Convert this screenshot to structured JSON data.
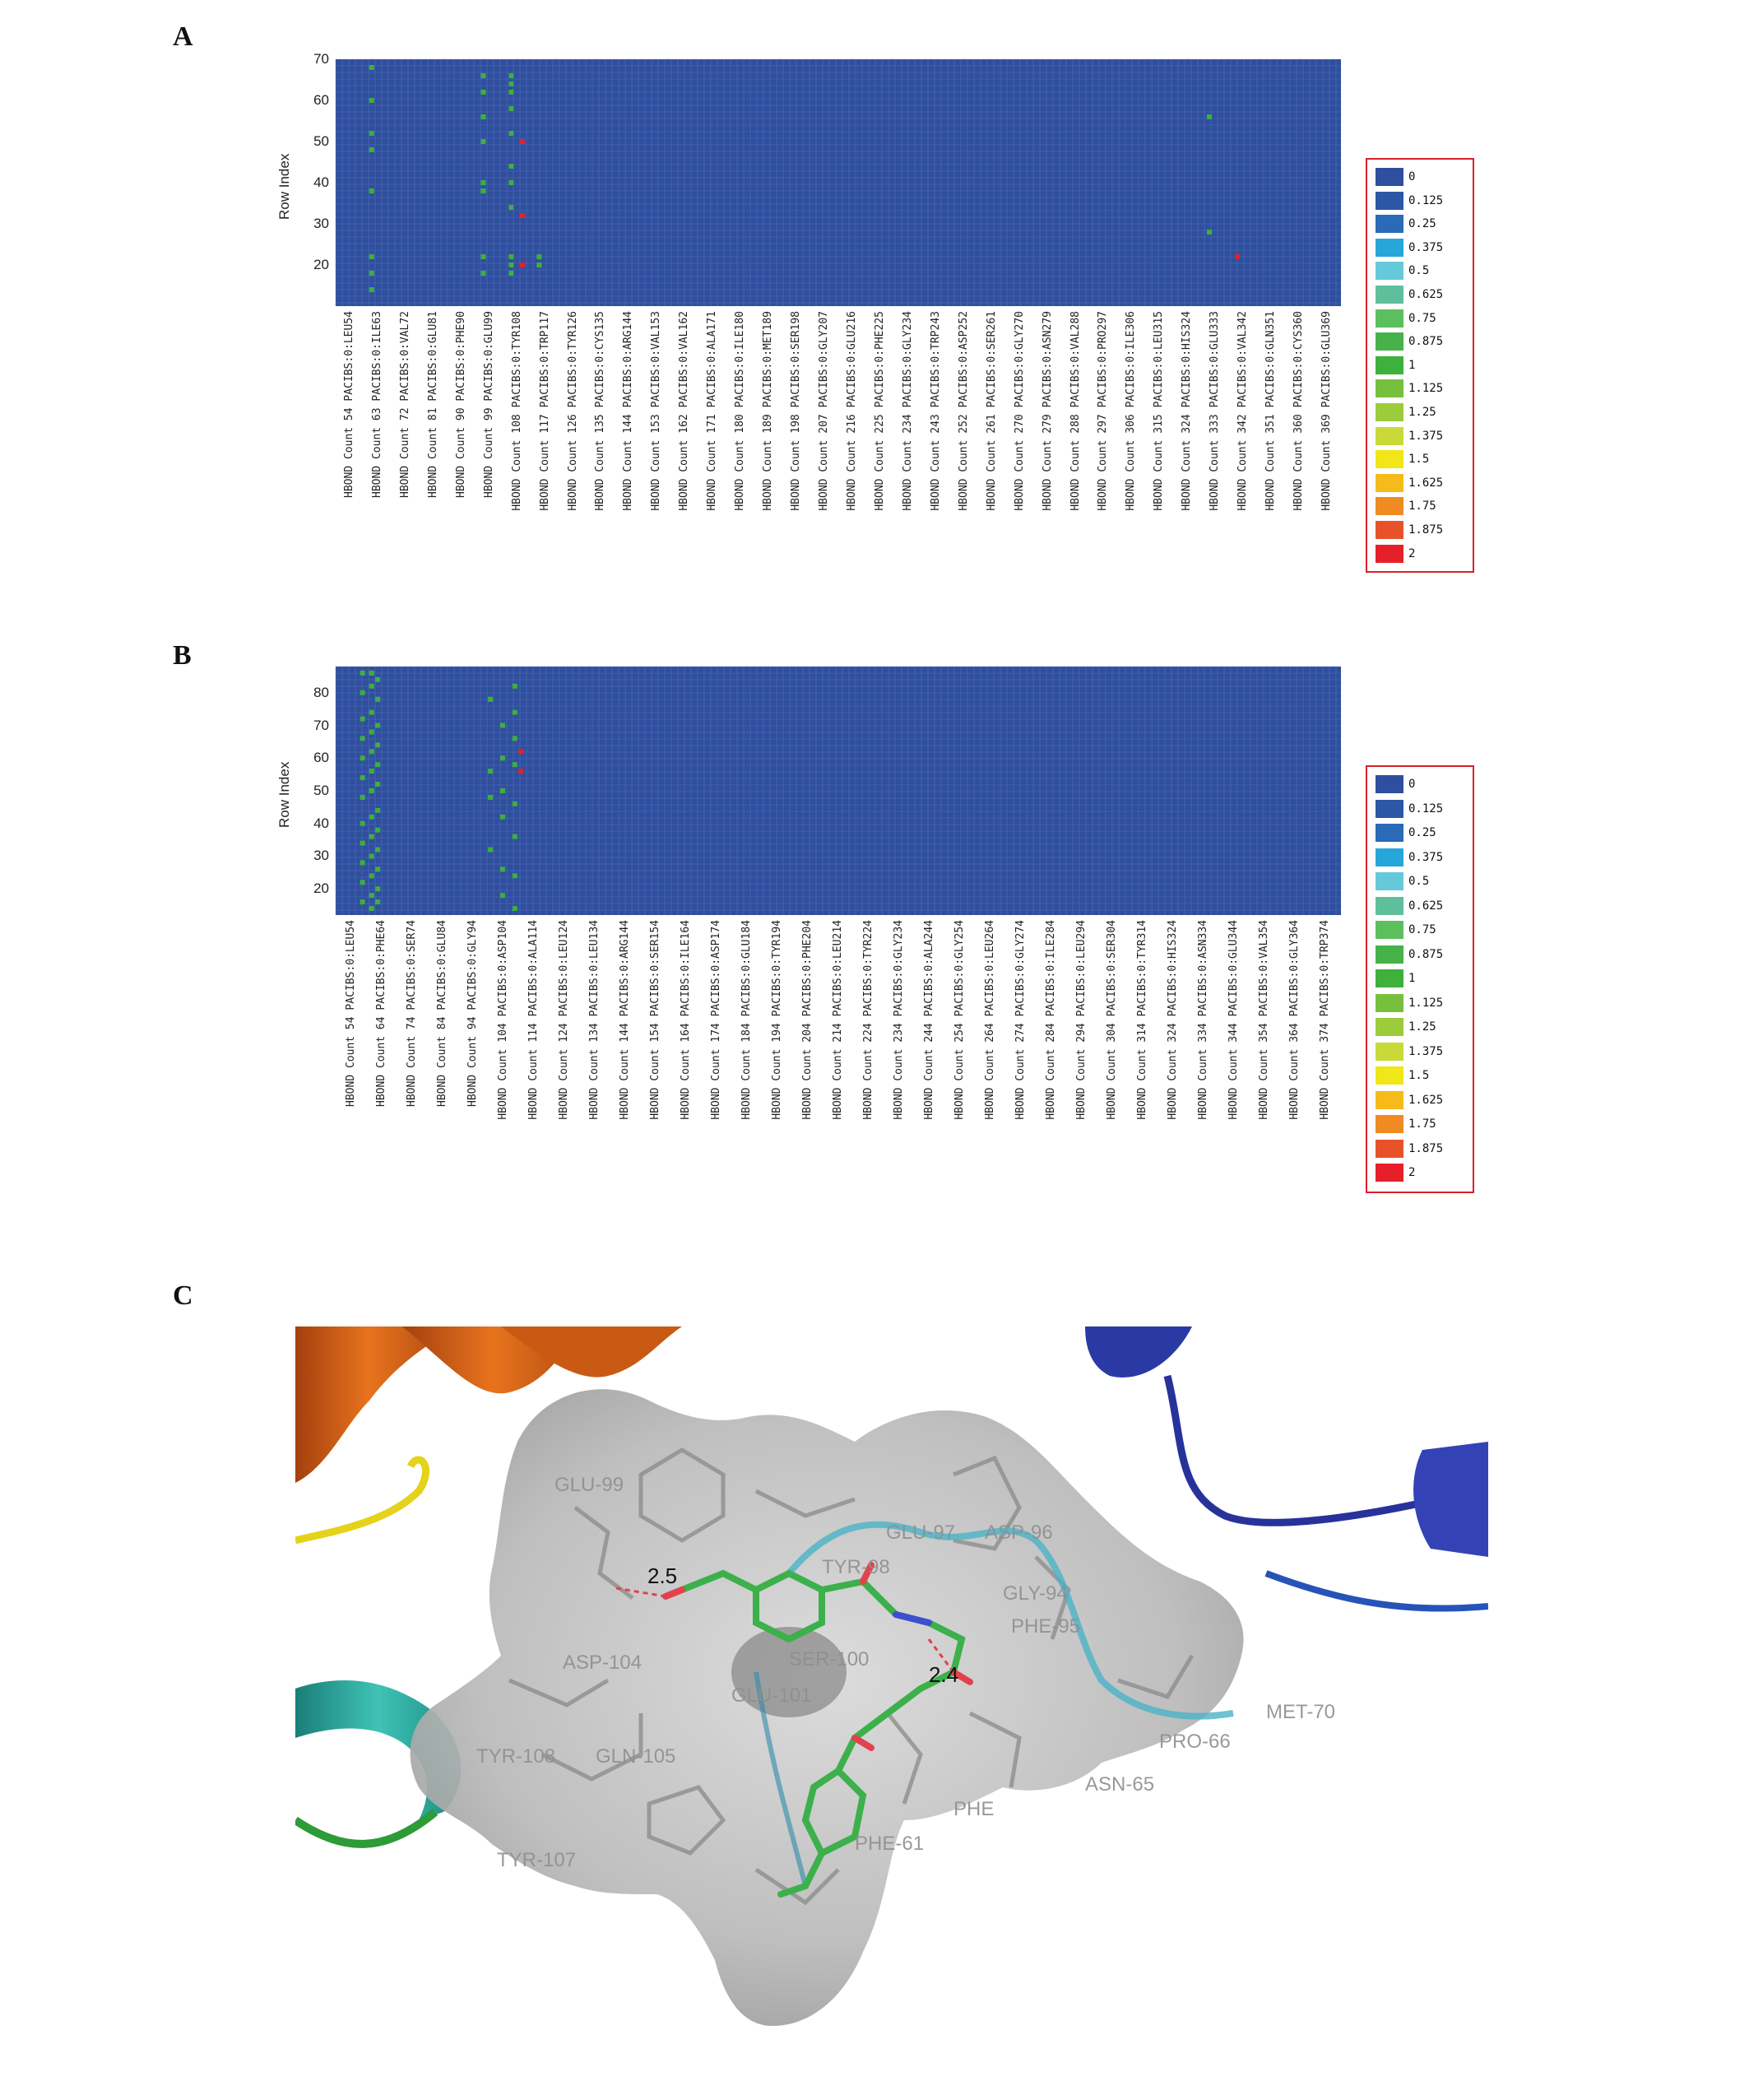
{
  "panels": {
    "a": "A",
    "b": "B",
    "c": "C"
  },
  "legend": {
    "labels": [
      "0",
      "0.125",
      "0.25",
      "0.375",
      "0.5",
      "0.625",
      "0.75",
      "0.875",
      "1",
      "1.125",
      "1.25",
      "1.375",
      "1.5",
      "1.625",
      "1.75",
      "1.875",
      "2"
    ],
    "colors": [
      "#2f4f9e",
      "#2d56a5",
      "#2a6ab6",
      "#27a7d9",
      "#66c9d9",
      "#5fbf9c",
      "#5bbf5e",
      "#47b24a",
      "#3eb03c",
      "#77c03e",
      "#9ccc3c",
      "#c9d93a",
      "#f0e618",
      "#f6bb1a",
      "#f08a22",
      "#e8522a",
      "#e6202a"
    ]
  },
  "chart_data": [
    {
      "type": "heatmap",
      "title": "",
      "xlabel": "",
      "ylabel": "Row Index",
      "ylim": [
        10,
        70
      ],
      "yticks": [
        20,
        30,
        40,
        50,
        60,
        70
      ],
      "categories": [
        "HBOND Count 54 PACIBS:0:LEU54",
        "HBOND Count 63 PACIBS:0:ILE63",
        "HBOND Count 72 PACIBS:0:VAL72",
        "HBOND Count 81 PACIBS:0:GLU81",
        "HBOND Count 90 PACIBS:0:PHE90",
        "HBOND Count 99 PACIBS:0:GLU99",
        "HBOND Count 108 PACIBS:0:TYR108",
        "HBOND Count 117 PACIBS:0:TRP117",
        "HBOND Count 126 PACIBS:0:TYR126",
        "HBOND Count 135 PACIBS:0:CYS135",
        "HBOND Count 144 PACIBS:0:ARG144",
        "HBOND Count 153 PACIBS:0:VAL153",
        "HBOND Count 162 PACIBS:0:VAL162",
        "HBOND Count 171 PACIBS:0:ALA171",
        "HBOND Count 180 PACIBS:0:ILE180",
        "HBOND Count 189 PACIBS:0:MET189",
        "HBOND Count 198 PACIBS:0:SER198",
        "HBOND Count 207 PACIBS:0:GLY207",
        "HBOND Count 216 PACIBS:0:GLU216",
        "HBOND Count 225 PACIBS:0:PHE225",
        "HBOND Count 234 PACIBS:0:GLY234",
        "HBOND Count 243 PACIBS:0:TRP243",
        "HBOND Count 252 PACIBS:0:ASP252",
        "HBOND Count 261 PACIBS:0:SER261",
        "HBOND Count 270 PACIBS:0:GLY270",
        "HBOND Count 279 PACIBS:0:ASN279",
        "HBOND Count 288 PACIBS:0:VAL288",
        "HBOND Count 297 PACIBS:0:PRO297",
        "HBOND Count 306 PACIBS:0:ILE306",
        "HBOND Count 315 PACIBS:0:LEU315",
        "HBOND Count 324 PACIBS:0:HIS324",
        "HBOND Count 333 PACIBS:0:GLU333",
        "HBOND Count 342 PACIBS:0:VAL342",
        "HBOND Count 351 PACIBS:0:GLN351",
        "HBOND Count 360 PACIBS:0:CYS360",
        "HBOND Count 369 PACIBS:0:GLU369"
      ],
      "hits": [
        {
          "x": 1,
          "y": [
            14,
            18,
            22,
            38,
            48,
            52,
            60,
            68
          ],
          "v": 1
        },
        {
          "x": 5,
          "y": [
            18,
            22,
            38,
            40,
            50,
            56,
            62,
            66
          ],
          "v": 1
        },
        {
          "x": 6,
          "y": [
            18,
            20,
            22,
            34,
            40,
            44,
            52,
            58,
            62,
            64,
            66
          ],
          "v": 1
        },
        {
          "x": 6.4,
          "y": [
            20,
            32,
            50
          ],
          "v": 2
        },
        {
          "x": 7,
          "y": [
            20,
            22
          ],
          "v": 1
        },
        {
          "x": 31,
          "y": [
            28,
            56
          ],
          "v": 1
        },
        {
          "x": 32,
          "y": [
            22
          ],
          "v": 2
        }
      ]
    },
    {
      "type": "heatmap",
      "title": "",
      "xlabel": "",
      "ylabel": "Row Index",
      "ylim": [
        12,
        88
      ],
      "yticks": [
        20,
        30,
        40,
        50,
        60,
        70,
        80
      ],
      "categories": [
        "HBOND Count 54 PACIBS:0:LEU54",
        "HBOND Count 64 PACIBS:0:PHE64",
        "HBOND Count 74 PACIBS:0:SER74",
        "HBOND Count 84 PACIBS:0:GLU84",
        "HBOND Count 94 PACIBS:0:GLY94",
        "HBOND Count 104 PACIBS:0:ASP104",
        "HBOND Count 114 PACIBS:0:ALA114",
        "HBOND Count 124 PACIBS:0:LEU124",
        "HBOND Count 134 PACIBS:0:LEU134",
        "HBOND Count 144 PACIBS:0:ARG144",
        "HBOND Count 154 PACIBS:0:SER154",
        "HBOND Count 164 PACIBS:0:ILE164",
        "HBOND Count 174 PACIBS:0:ASP174",
        "HBOND Count 184 PACIBS:0:GLU184",
        "HBOND Count 194 PACIBS:0:TYR194",
        "HBOND Count 204 PACIBS:0:PHE204",
        "HBOND Count 214 PACIBS:0:LEU214",
        "HBOND Count 224 PACIBS:0:TYR224",
        "HBOND Count 234 PACIBS:0:GLY234",
        "HBOND Count 244 PACIBS:0:ALA244",
        "HBOND Count 254 PACIBS:0:GLY254",
        "HBOND Count 264 PACIBS:0:LEU264",
        "HBOND Count 274 PACIBS:0:GLY274",
        "HBOND Count 284 PACIBS:0:ILE284",
        "HBOND Count 294 PACIBS:0:LEU294",
        "HBOND Count 304 PACIBS:0:SER304",
        "HBOND Count 314 PACIBS:0:TYR314",
        "HBOND Count 324 PACIBS:0:HIS324",
        "HBOND Count 334 PACIBS:0:ASN334",
        "HBOND Count 344 PACIBS:0:GLU344",
        "HBOND Count 354 PACIBS:0:VAL354",
        "HBOND Count 364 PACIBS:0:GLY364",
        "HBOND Count 374 PACIBS:0:TRP374"
      ],
      "hits": [
        {
          "x": 0.6,
          "y": [
            16,
            22,
            28,
            34,
            40,
            48,
            54,
            60,
            66,
            72,
            80,
            86
          ],
          "v": 1
        },
        {
          "x": 0.9,
          "y": [
            14,
            18,
            24,
            30,
            36,
            42,
            50,
            56,
            62,
            68,
            74,
            82,
            86
          ],
          "v": 1
        },
        {
          "x": 1.1,
          "y": [
            16,
            20,
            26,
            32,
            38,
            44,
            52,
            58,
            64,
            70,
            78,
            84
          ],
          "v": 1
        },
        {
          "x": 4.8,
          "y": [
            32,
            48,
            56,
            78
          ],
          "v": 1
        },
        {
          "x": 5.2,
          "y": [
            18,
            26,
            42,
            50,
            60,
            70
          ],
          "v": 1
        },
        {
          "x": 5.6,
          "y": [
            14,
            24,
            36,
            46,
            58,
            66,
            74,
            82
          ],
          "v": 1
        },
        {
          "x": 5.8,
          "y": [
            56,
            62
          ],
          "v": 2
        }
      ]
    }
  ],
  "figure_c": {
    "residue_labels": [
      "GLU-99",
      "GLU-97",
      "ASP-96",
      "TYR-98",
      "GLY-94",
      "PHE-95",
      "SER-100",
      "ASP-104",
      "GLU-101",
      "TYR-108",
      "GLN-105",
      "TYR-107",
      "PRO-66",
      "MET-70",
      "ASN-65",
      "PHE",
      "PHE-61"
    ],
    "distances": [
      "2.5",
      "2.4"
    ]
  }
}
